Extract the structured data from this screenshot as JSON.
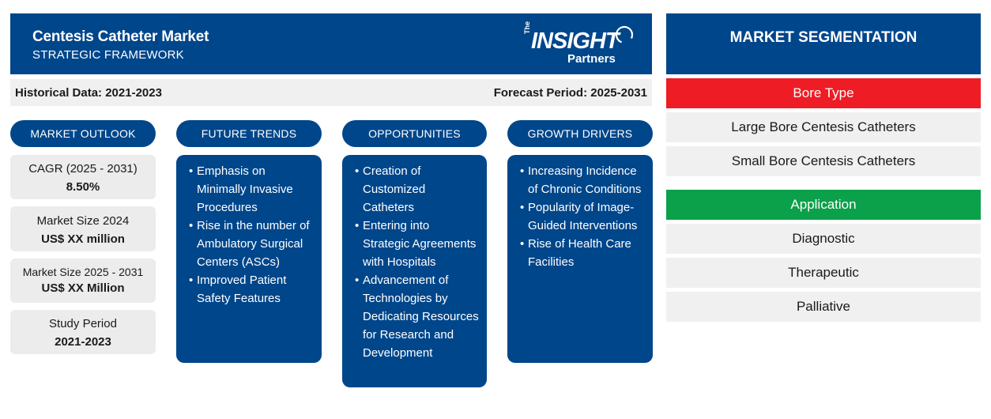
{
  "header": {
    "title": "Centesis Catheter Market",
    "subtitle": "STRATEGIC FRAMEWORK",
    "logo": {
      "the": "The",
      "main": "INSIGHT",
      "partners": "Partners"
    }
  },
  "period": {
    "historical": "Historical Data: 2021-2023",
    "forecast": "Forecast Period: 2025-2031"
  },
  "columns": {
    "outlook": "MARKET OUTLOOK",
    "trends": "FUTURE TRENDS",
    "opportunities": "OPPORTUNITIES",
    "drivers": "GROWTH DRIVERS"
  },
  "outlook": [
    {
      "label": "CAGR (2025 - 2031)",
      "value": "8.50%"
    },
    {
      "label": "Market Size 2024",
      "value": "US$ XX million"
    },
    {
      "label": "Market Size 2025 - 2031",
      "value": "US$ XX Million"
    },
    {
      "label": "Study Period",
      "value": "2021-2023"
    }
  ],
  "trends": [
    "Emphasis on Minimally Invasive Procedures",
    "Rise in the number of Ambulatory Surgical Centers (ASCs)",
    "Improved Patient Safety Features"
  ],
  "opportunities": [
    "Creation of Customized Catheters",
    "Entering into Strategic Agreements with Hospitals",
    "Advancement of Technologies by Dedicating Resources for Research and Development"
  ],
  "drivers": [
    "Increasing Incidence of Chronic Conditions",
    "Popularity of Image-Guided Interventions",
    "Rise of Health Care Facilities"
  ],
  "segmentation": {
    "title": "MARKET SEGMENTATION",
    "categories": [
      {
        "name": "Bore Type",
        "color": "#ee1c25",
        "items": [
          "Large Bore Centesis Catheters",
          "Small Bore Centesis Catheters"
        ]
      },
      {
        "name": "Application",
        "color": "#0ba04a",
        "items": [
          "Diagnostic",
          "Therapeutic",
          "Palliative"
        ]
      }
    ]
  },
  "colors": {
    "primary": "#00468b",
    "panel": "#f0f0f0"
  }
}
